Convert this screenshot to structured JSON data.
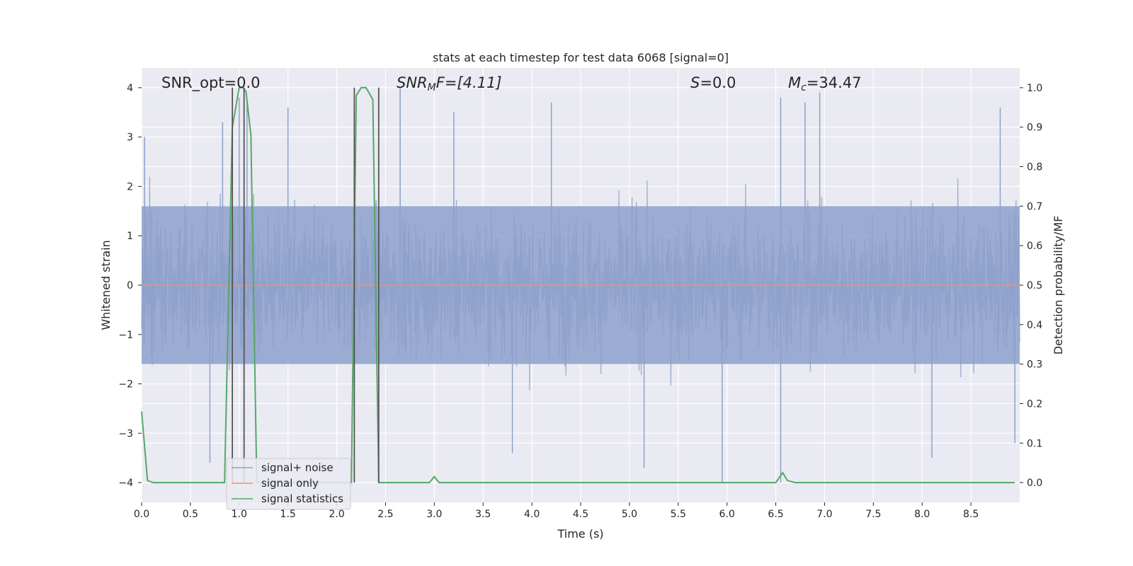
{
  "chart_data": {
    "type": "line",
    "title": "stats at each timestep for test data 6068 [signal=0]",
    "xlabel": "Time (s)",
    "ylabel": "Whitened strain",
    "ylabel_right": "Detection probability/MF",
    "xlim": [
      0.0,
      9.0
    ],
    "ylim": [
      -4.4,
      4.4
    ],
    "ylim_right": [
      -0.05,
      1.05
    ],
    "grid": true,
    "legend_position": "lower-left",
    "x_ticks": [
      "0.0",
      "0.5",
      "1.0",
      "1.5",
      "2.0",
      "2.5",
      "3.0",
      "3.5",
      "4.0",
      "4.5",
      "5.0",
      "5.5",
      "6.0",
      "6.5",
      "7.0",
      "7.5",
      "8.0",
      "8.5"
    ],
    "y_ticks": [
      "4",
      "3",
      "2",
      "1",
      "0",
      "−1",
      "−2",
      "−3",
      "−4"
    ],
    "y_ticks_right": [
      "1.0",
      "0.9",
      "0.8",
      "0.7",
      "0.6",
      "0.5",
      "0.4",
      "0.3",
      "0.2",
      "0.1",
      "0.0"
    ],
    "annotations": {
      "snr_opt": "SNR_opt=0.0",
      "snr_mf_main": "SNR",
      "snr_mf_sub": "M",
      "snr_mf_rest": "F=[4.11]",
      "s_main": "S",
      "s_rest": "=0.0",
      "mc_main": "M",
      "mc_sub": "c",
      "mc_rest": "=34.47"
    },
    "series": [
      {
        "name": "signal+ noise",
        "color": "#8da0cb",
        "style": "noise",
        "envelope_outer": [
          1.6,
          -1.6
        ],
        "notable_peaks": [
          {
            "x": 0.03,
            "y": 3.0
          },
          {
            "x": 0.83,
            "y": 3.3
          },
          {
            "x": 1.0,
            "y": 3.8
          },
          {
            "x": 1.08,
            "y": 3.7
          },
          {
            "x": 1.5,
            "y": 3.6
          },
          {
            "x": 2.65,
            "y": 4.0
          },
          {
            "x": 3.2,
            "y": 3.5
          },
          {
            "x": 4.2,
            "y": 3.7
          },
          {
            "x": 6.55,
            "y": 3.8
          },
          {
            "x": 6.95,
            "y": 3.9
          },
          {
            "x": 6.8,
            "y": 3.7
          },
          {
            "x": 8.8,
            "y": 3.6
          },
          {
            "x": 0.7,
            "y": -3.6
          },
          {
            "x": 1.05,
            "y": -3.2
          },
          {
            "x": 3.8,
            "y": -3.4
          },
          {
            "x": 5.15,
            "y": -3.7
          },
          {
            "x": 5.95,
            "y": -4.0
          },
          {
            "x": 6.55,
            "y": -4.0
          },
          {
            "x": 8.1,
            "y": -3.5
          },
          {
            "x": 8.95,
            "y": -3.2
          }
        ]
      },
      {
        "name": "signal only",
        "color": "#fc8d62",
        "x": [
          0.0,
          9.0
        ],
        "y": [
          0.0,
          0.0
        ]
      },
      {
        "name": "signal statistics",
        "color": "#55a868",
        "axis": "right",
        "x": [
          0.0,
          0.06,
          0.12,
          0.85,
          0.93,
          1.0,
          1.04,
          1.07,
          1.12,
          1.18,
          2.15,
          2.2,
          2.25,
          2.3,
          2.37,
          2.43,
          2.5,
          2.95,
          3.0,
          3.05,
          3.12,
          6.5,
          6.57,
          6.62,
          6.7,
          8.95
        ],
        "y": [
          0.18,
          0.005,
          0.0,
          0.0,
          0.9,
          1.0,
          1.0,
          0.99,
          0.88,
          0.0,
          0.0,
          0.98,
          1.0,
          1.0,
          0.97,
          0.0,
          0.0,
          0.0,
          0.015,
          0.0,
          0.0,
          0.0,
          0.025,
          0.005,
          0.0,
          0.0
        ]
      }
    ],
    "vertical_markers": {
      "color": "#555555",
      "x": [
        0.93,
        1.05,
        2.18,
        2.43
      ],
      "y_top_right": 1.0,
      "y_bottom_right": 0.0
    }
  }
}
